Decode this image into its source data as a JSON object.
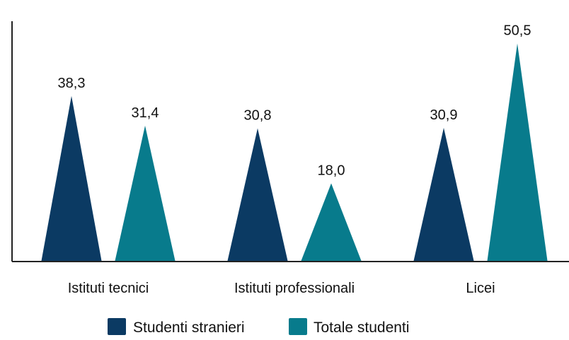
{
  "chart_data": {
    "type": "bar",
    "shape": "triangle",
    "categories": [
      "Istituti tecnici",
      "Istituti professionali",
      "Licei"
    ],
    "series": [
      {
        "name": "Studenti stranieri",
        "color": "#0b3a63",
        "values": [
          38.3,
          30.8,
          30.9
        ],
        "labels": [
          "38,3",
          "30,8",
          "30,9"
        ]
      },
      {
        "name": "Totale studenti",
        "color": "#087b8c",
        "values": [
          31.4,
          18.0,
          50.5
        ],
        "labels": [
          "31,4",
          "18,0",
          "50,5"
        ]
      }
    ],
    "ylim": [
      0,
      56
    ],
    "grid": false,
    "legend_position": "bottom-center"
  }
}
